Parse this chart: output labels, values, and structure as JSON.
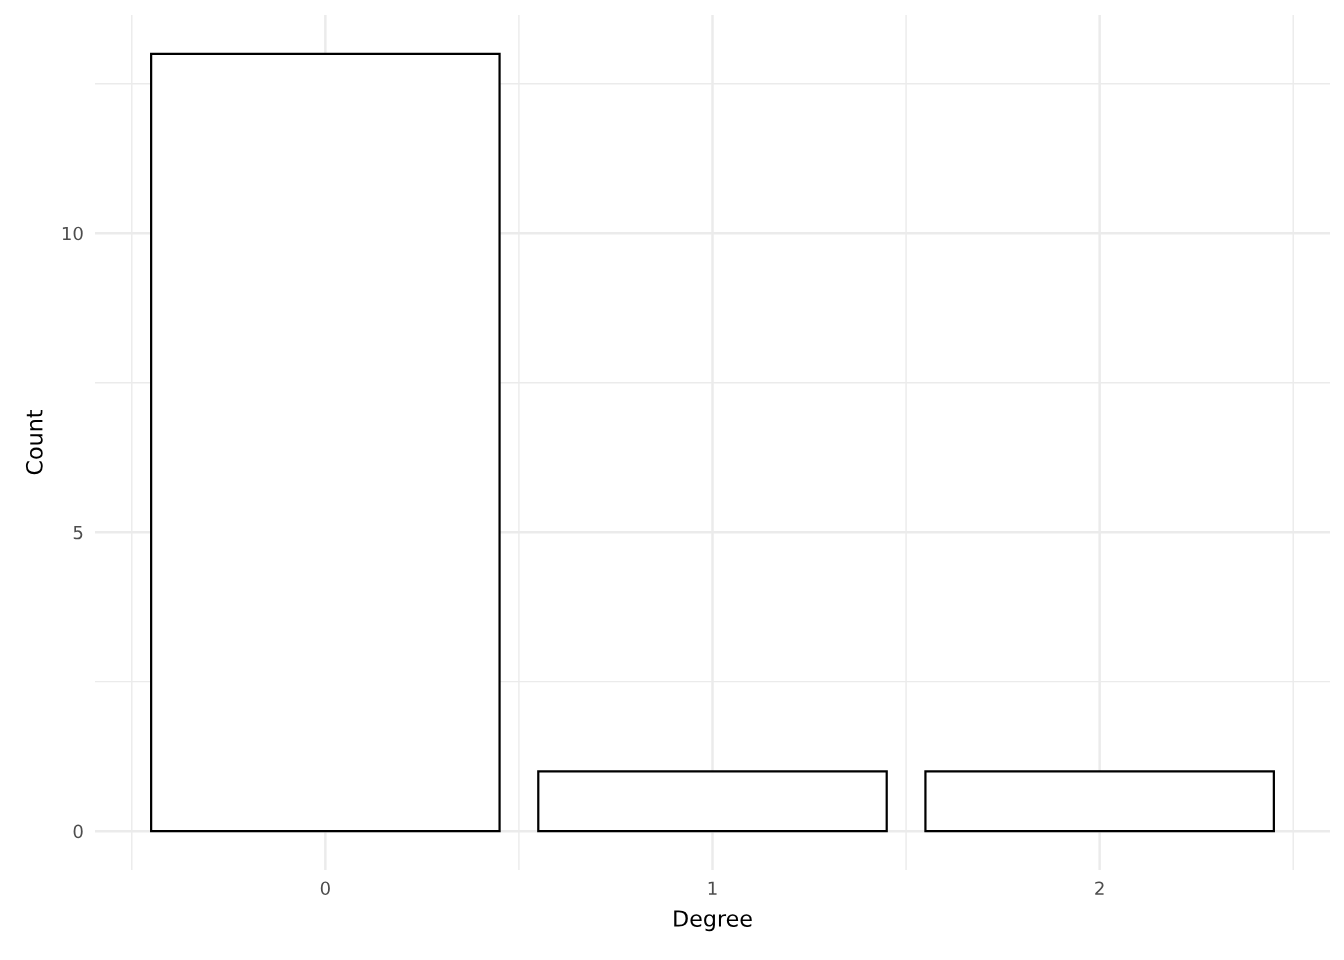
{
  "chart_data": {
    "type": "bar",
    "xlabel": "Degree",
    "ylabel": "Count",
    "x": [
      0,
      1,
      2
    ],
    "values": [
      13,
      1,
      1
    ],
    "color": "#ffffff",
    "xlim": [
      -0.595,
      2.595
    ],
    "ylim": [
      -0.65,
      13.65
    ],
    "xticks": [
      {
        "value": -0.5,
        "label": null
      },
      0,
      {
        "value": 0.5,
        "label": null
      },
      1,
      {
        "value": 1.5,
        "label": null
      },
      2,
      {
        "value": 2.5,
        "label": null
      }
    ],
    "yticks": [
      0,
      {
        "value": 2.5,
        "label": null
      },
      5,
      {
        "value": 7.5,
        "label": null
      },
      10,
      {
        "value": 12.5,
        "label": null
      }
    ],
    "grid": true
  }
}
